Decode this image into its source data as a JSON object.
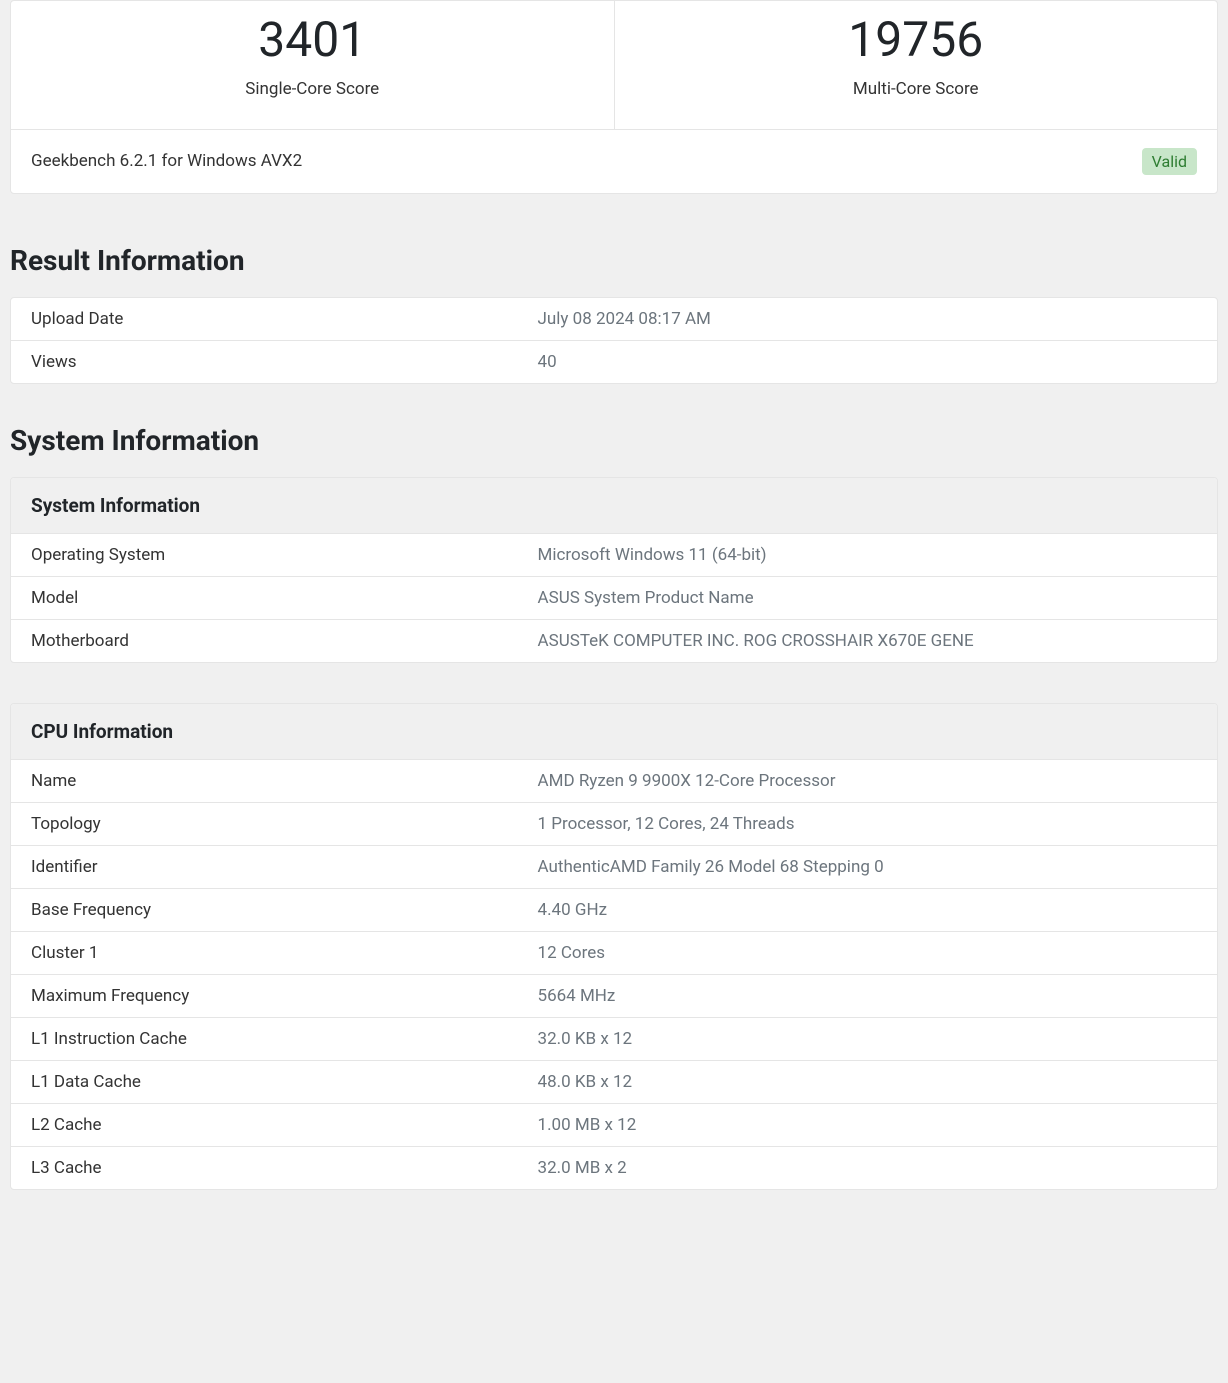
{
  "scores": {
    "single_core_value": "3401",
    "single_core_label": "Single-Core Score",
    "multi_core_value": "19756",
    "multi_core_label": "Multi-Core Score"
  },
  "version": {
    "text": "Geekbench 6.2.1 for Windows AVX2",
    "status": "Valid"
  },
  "result_info": {
    "heading": "Result Information",
    "rows": [
      {
        "label": "Upload Date",
        "value": "July 08 2024 08:17 AM"
      },
      {
        "label": "Views",
        "value": "40"
      }
    ]
  },
  "system_info": {
    "heading": "System Information",
    "table_header": "System Information",
    "rows": [
      {
        "label": "Operating System",
        "value": "Microsoft Windows 11 (64-bit)"
      },
      {
        "label": "Model",
        "value": "ASUS System Product Name"
      },
      {
        "label": "Motherboard",
        "value": "ASUSTeK COMPUTER INC. ROG CROSSHAIR X670E GENE"
      }
    ]
  },
  "cpu_info": {
    "table_header": "CPU Information",
    "rows": [
      {
        "label": "Name",
        "value": "AMD Ryzen 9 9900X 12-Core Processor"
      },
      {
        "label": "Topology",
        "value": "1 Processor, 12 Cores, 24 Threads"
      },
      {
        "label": "Identifier",
        "value": "AuthenticAMD Family 26 Model 68 Stepping 0"
      },
      {
        "label": "Base Frequency",
        "value": "4.40 GHz"
      },
      {
        "label": "Cluster 1",
        "value": "12 Cores"
      },
      {
        "label": "Maximum Frequency",
        "value": "5664 MHz"
      },
      {
        "label": "L1 Instruction Cache",
        "value": "32.0 KB x 12"
      },
      {
        "label": "L1 Data Cache",
        "value": "48.0 KB x 12"
      },
      {
        "label": "L2 Cache",
        "value": "1.00 MB x 12"
      },
      {
        "label": "L3 Cache",
        "value": "32.0 MB x 2"
      }
    ]
  },
  "colors": {
    "background": "#f0f0f0",
    "card_bg": "#ffffff",
    "border": "#e5e5e5",
    "text_primary": "#212529",
    "text_secondary": "#6c757d",
    "badge_bg": "#c8e6c9",
    "badge_text": "#2e7d32"
  }
}
